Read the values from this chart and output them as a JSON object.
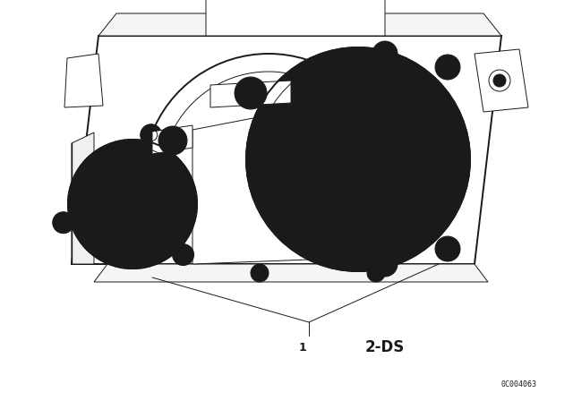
{
  "bg_color": "#ffffff",
  "line_color": "#1a1a1a",
  "fig_width": 6.4,
  "fig_height": 4.48,
  "dpi": 100,
  "label_1": "1",
  "label_2": "2-DS",
  "part_code": "0C004063",
  "lw": 0.7,
  "lw_thick": 1.4,
  "lw_med": 1.0
}
